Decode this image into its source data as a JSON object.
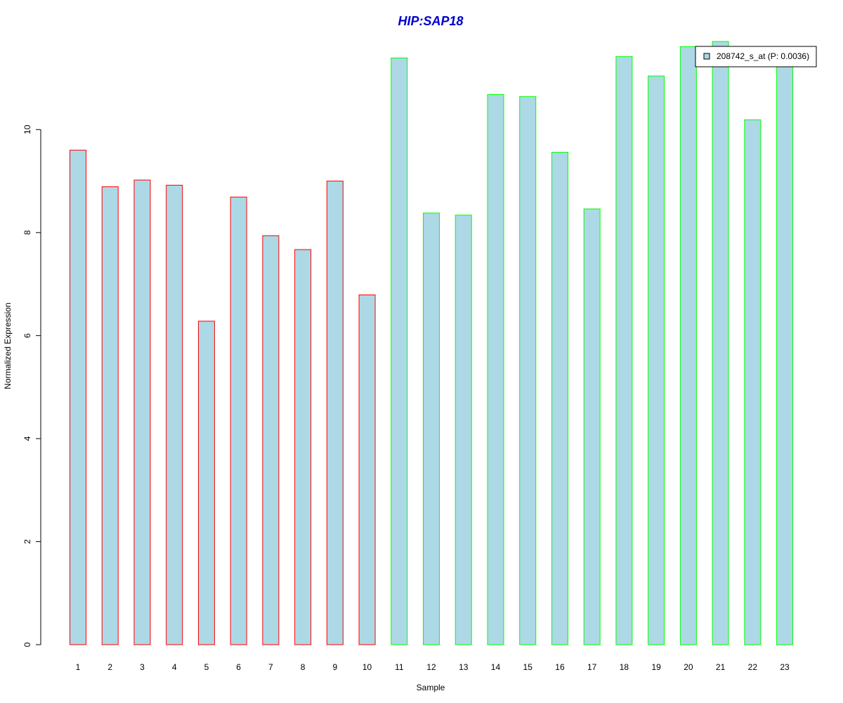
{
  "chart_data": {
    "type": "bar",
    "title": "HIP:SAP18",
    "x_label": "Sample",
    "y_label": "Normalized Expression",
    "categories": [
      "1",
      "2",
      "3",
      "4",
      "5",
      "6",
      "7",
      "8",
      "9",
      "10",
      "11",
      "12",
      "13",
      "14",
      "15",
      "16",
      "17",
      "18",
      "19",
      "20",
      "21",
      "22",
      "23"
    ],
    "series": [
      {
        "name": "208742_s_at (P: 0.0036)",
        "color": "#add8e6",
        "border_colors": [
          "#ff0000",
          "#ff0000",
          "#ff0000",
          "#ff0000",
          "#ff0000",
          "#ff0000",
          "#ff0000",
          "#ff0000",
          "#ff0000",
          "#ff0000",
          "#00ff00",
          "#00ff00",
          "#00ff00",
          "#00ff00",
          "#00ff00",
          "#00ff00",
          "#00ff00",
          "#00ff00",
          "#00ff00",
          "#00ff00",
          "#00ff00",
          "#00ff00",
          "#00ff00"
        ],
        "values": [
          9.6,
          8.89,
          9.02,
          8.92,
          6.28,
          8.69,
          7.94,
          7.67,
          9.0,
          6.79,
          11.39,
          8.38,
          8.34,
          10.68,
          10.64,
          9.56,
          8.46,
          11.42,
          11.04,
          11.61,
          11.71,
          10.19,
          11.3
        ]
      }
    ],
    "ylim": [
      0,
      11.71
    ],
    "yticks": [
      0,
      2,
      4,
      6,
      8,
      10
    ],
    "legend": "top-right"
  }
}
